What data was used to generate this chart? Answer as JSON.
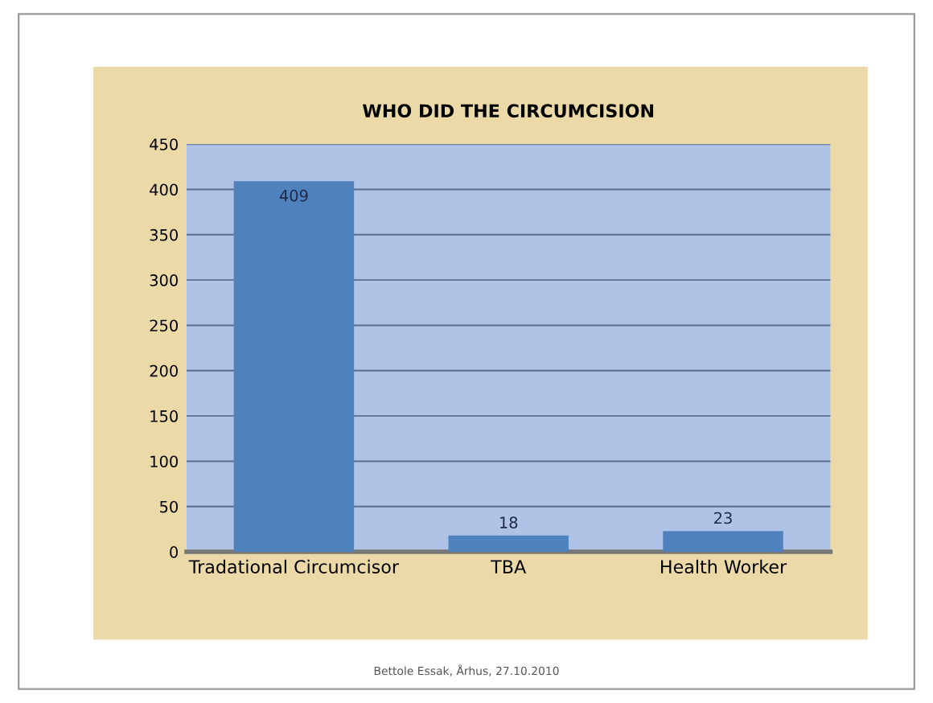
{
  "chart_data": {
    "type": "bar",
    "title": "WHO DID THE CIRCUMCISION",
    "categories": [
      "Tradational Circumcisor",
      "TBA",
      "Health Worker"
    ],
    "values": [
      409,
      18,
      23
    ],
    "color": "#4f81bd",
    "ylim": [
      0,
      450
    ],
    "yticks": [
      0,
      50,
      100,
      150,
      200,
      250,
      300,
      350,
      400,
      450
    ],
    "grid": "y",
    "data_labels": true,
    "annotations": [
      "Bettole Essak, Århus, 27.10.2010"
    ]
  }
}
